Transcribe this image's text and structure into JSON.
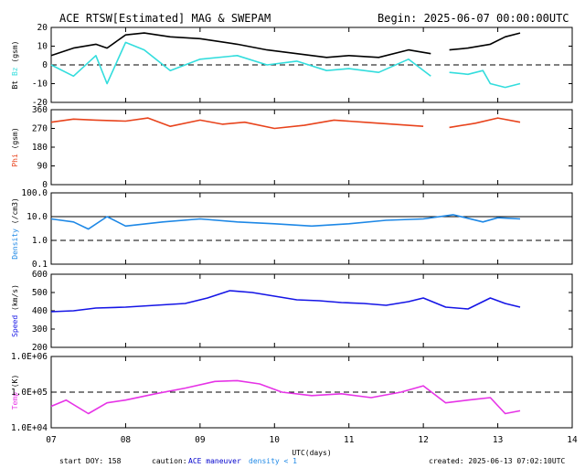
{
  "header": {
    "title": "ACE RTSW[Estimated] MAG & SWEPAM",
    "begin": "Begin: 2025-06-07 00:00:00UTC"
  },
  "footer": {
    "start_doy": "start DOY: 158",
    "caution_label": "caution:",
    "caution_maneuver": "ACE maneuver",
    "caution_density": "density < 1",
    "created": "created: 2025-06-13 07:02:10UTC"
  },
  "colors": {
    "bt": "#000000",
    "bz": "#33dddd",
    "phi": "#e8431c",
    "density": "#1e88e6",
    "speed": "#1515e6",
    "temp": "#e633e6",
    "maneuver": "#0000cc",
    "density_note": "#1e88e6"
  },
  "chart_data": {
    "type": "line",
    "x_axis": {
      "label": "UTC(days)",
      "range": [
        7,
        14
      ],
      "ticks": [
        "07",
        "08",
        "09",
        "10",
        "11",
        "12",
        "13",
        "14"
      ]
    },
    "panels": [
      {
        "id": "mag",
        "ylabel_parts": [
          "Bt",
          "Bz",
          "(gsm)"
        ],
        "ylim": [
          -20,
          20
        ],
        "yticks": [
          "20",
          "10",
          "0",
          "-10",
          "-20"
        ],
        "dashed_lines": [
          0
        ],
        "series": [
          {
            "name": "Bt",
            "color": "#000000",
            "x": [
              7.0,
              7.3,
              7.6,
              7.75,
              8.0,
              8.25,
              8.6,
              9.0,
              9.5,
              9.9,
              10.3,
              10.7,
              11.0,
              11.4,
              11.8,
              12.1,
              12.2,
              12.35,
              12.6,
              12.9,
              13.1,
              13.3
            ],
            "y": [
              5,
              9,
              11,
              9,
              16,
              17,
              15,
              14,
              11,
              8,
              6,
              4,
              5,
              4,
              8,
              6,
              null,
              8,
              9,
              11,
              15,
              17
            ]
          },
          {
            "name": "Bz",
            "color": "#33dddd",
            "x": [
              7.0,
              7.3,
              7.6,
              7.75,
              8.0,
              8.25,
              8.6,
              9.0,
              9.5,
              9.9,
              10.3,
              10.7,
              11.0,
              11.4,
              11.8,
              12.1,
              12.2,
              12.35,
              12.6,
              12.8,
              12.9,
              13.1,
              13.3
            ],
            "y": [
              0,
              -6,
              5,
              -10,
              12,
              8,
              -3,
              3,
              5,
              0,
              2,
              -3,
              -2,
              -4,
              3,
              -6,
              null,
              -4,
              -5,
              -3,
              -10,
              -12,
              -10
            ]
          }
        ]
      },
      {
        "id": "phi",
        "ylabel_parts": [
          "Phi",
          "(gsm)"
        ],
        "ylim": [
          0,
          360
        ],
        "yticks": [
          "360",
          "270",
          "180",
          "90",
          "0"
        ],
        "dashed_lines": [],
        "series": [
          {
            "name": "Phi",
            "color": "#e8431c",
            "x": [
              7.0,
              7.3,
              7.6,
              8.0,
              8.3,
              8.6,
              9.0,
              9.3,
              9.6,
              10.0,
              10.4,
              10.8,
              11.2,
              11.6,
              12.0,
              12.2,
              12.35,
              12.7,
              13.0,
              13.3
            ],
            "y": [
              300,
              315,
              310,
              305,
              320,
              280,
              310,
              290,
              300,
              270,
              285,
              310,
              300,
              290,
              280,
              null,
              275,
              295,
              320,
              300
            ]
          }
        ]
      },
      {
        "id": "density",
        "ylabel_parts": [
          "Density",
          "(/cm3)"
        ],
        "log": true,
        "ylim": [
          0.1,
          100
        ],
        "yticks": [
          "100.0",
          "10.0",
          "1.0",
          "0.1"
        ],
        "dashed_lines": [
          1
        ],
        "solid_lines": [
          10
        ],
        "series": [
          {
            "name": "Density",
            "color": "#1e88e6",
            "x": [
              7.0,
              7.3,
              7.5,
              7.75,
              8.0,
              8.5,
              9.0,
              9.5,
              10.0,
              10.5,
              11.0,
              11.5,
              12.0,
              12.4,
              12.8,
              13.0,
              13.3
            ],
            "y": [
              8,
              6,
              3,
              10,
              4,
              6,
              8,
              6,
              5,
              4,
              5,
              7,
              8,
              12,
              6,
              9,
              8
            ]
          }
        ]
      },
      {
        "id": "speed",
        "ylabel_parts": [
          "Speed",
          "(km/s)"
        ],
        "ylim": [
          200,
          600
        ],
        "yticks": [
          "600",
          "500",
          "400",
          "300",
          "200"
        ],
        "dashed_lines": [],
        "series": [
          {
            "name": "Speed",
            "color": "#1515e6",
            "x": [
              7.0,
              7.3,
              7.6,
              8.0,
              8.4,
              8.8,
              9.1,
              9.4,
              9.7,
              10.0,
              10.3,
              10.6,
              10.9,
              11.2,
              11.5,
              11.8,
              12.0,
              12.3,
              12.6,
              12.9,
              13.1,
              13.3
            ],
            "y": [
              395,
              400,
              415,
              420,
              430,
              440,
              470,
              510,
              500,
              480,
              460,
              455,
              445,
              440,
              430,
              450,
              470,
              420,
              410,
              470,
              440,
              420
            ]
          }
        ]
      },
      {
        "id": "temp",
        "ylabel_parts": [
          "Temp",
          "(K)"
        ],
        "log": true,
        "ylim": [
          10000,
          1000000
        ],
        "yticks": [
          "1.0E+06",
          "1.0E+05",
          "1.0E+04"
        ],
        "dashed_lines": [
          100000
        ],
        "series": [
          {
            "name": "Temp",
            "color": "#e633e6",
            "x": [
              7.0,
              7.2,
              7.5,
              7.75,
              8.0,
              8.4,
              8.8,
              9.2,
              9.5,
              9.8,
              10.1,
              10.5,
              10.9,
              11.3,
              11.7,
              12.0,
              12.3,
              12.6,
              12.9,
              13.1,
              13.3
            ],
            "y": [
              40000,
              60000,
              25000,
              50000,
              60000,
              90000,
              130000,
              200000,
              210000,
              170000,
              100000,
              80000,
              90000,
              70000,
              100000,
              150000,
              50000,
              60000,
              70000,
              25000,
              30000
            ]
          }
        ]
      }
    ]
  }
}
